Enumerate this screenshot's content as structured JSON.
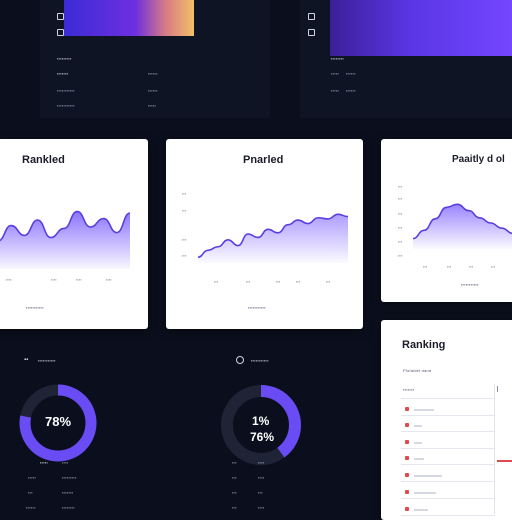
{
  "top_left": {
    "rows": [
      {
        "left": "▪▪▪▪▪▪▪▪▪",
        "right": ""
      },
      {
        "left": "▪▪▪▪▪▪▪",
        "right": "▪▪▪▪▪▪"
      },
      {
        "left": "▪▪▪▪▪▪▪▪▪▪▪",
        "right": "▪▪▪▪▪▪"
      },
      {
        "left": "▪▪▪▪▪▪▪▪▪▪▪",
        "right": "▪▪▪▪▪"
      }
    ]
  },
  "top_right": {
    "rows": [
      {
        "left": "▪▪▪▪▪▪▪▪",
        "right": ""
      },
      {
        "left": "▪▪▪▪▪",
        "right": "▪▪▪▪▪▪"
      },
      {
        "left": "▪▪▪▪▪",
        "right": "▪▪▪▪▪▪"
      },
      {
        "left": "",
        "right": ""
      }
    ]
  },
  "cards": {
    "ranked": {
      "title": "Rankled",
      "footer": "▪▪▪▪▪▪▪▪▪▪▪"
    },
    "pranked": {
      "title": "Pnarled",
      "footer": "▪▪▪▪▪▪▪▪▪▪▪"
    },
    "penalty": {
      "title": "Paaitly d ol",
      "footer": "▪▪▪▪▪▪▪▪▪▪▪"
    },
    "ranking": {
      "title": "Ranking",
      "subtitle": "Plofaldet dand",
      "header": "▪▪▪▪▪▪▪"
    }
  },
  "donut_left": {
    "header": "▪▪▪▪▪▪▪▪▪▪▪",
    "value": "78%",
    "percent": 78
  },
  "donut_right": {
    "header": "▪▪▪▪▪▪▪▪▪▪▪",
    "value_a": "1%",
    "value_b": "76%",
    "percent": 40
  },
  "chart_data": [
    {
      "type": "area",
      "title": "Rankled",
      "y": [
        40,
        62,
        48,
        70,
        45,
        58,
        82,
        60,
        72,
        52,
        80
      ]
    },
    {
      "type": "area",
      "title": "Pnarled",
      "y": [
        10,
        22,
        28,
        40,
        30,
        50,
        44,
        58,
        52,
        66,
        74,
        68,
        78,
        76,
        84,
        80
      ]
    },
    {
      "type": "area",
      "title": "Paaitly d ol",
      "y": [
        20,
        36,
        58,
        80,
        86,
        74,
        60,
        50,
        40,
        30
      ]
    }
  ],
  "colors": {
    "accent": "#7a5cff",
    "accent_dark": "#4b2bd6",
    "bg": "#0b0f1d",
    "card": "#ffffff",
    "danger": "#e0494f"
  }
}
